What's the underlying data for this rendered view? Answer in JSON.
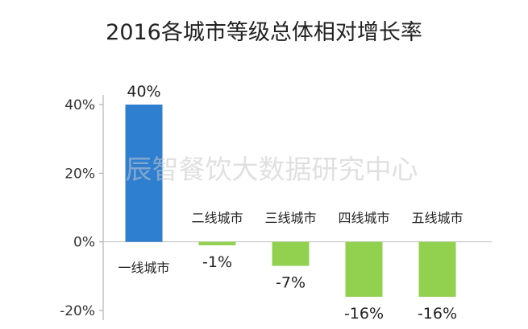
{
  "chart_data": {
    "type": "bar",
    "title": "2016各城市等级总体相对增长率",
    "watermark": "辰智餐饮大数据研究中心",
    "categories": [
      "一线城市",
      "二线城市",
      "三线城市",
      "四线城市",
      "五线城市"
    ],
    "values": [
      40,
      -1,
      -7,
      -16,
      -16
    ],
    "value_labels": [
      "40%",
      "-1%",
      "-7%",
      "-16%",
      "-16%"
    ],
    "y_ticks": [
      40,
      20,
      0,
      -20
    ],
    "y_tick_labels": [
      "40%",
      "20%",
      "0%",
      "-20%"
    ],
    "ylim": [
      -20,
      40
    ],
    "grid": false,
    "legend": "none",
    "colors": [
      "#2f7fd1",
      "#92d050",
      "#92d050",
      "#92d050",
      "#92d050"
    ]
  }
}
